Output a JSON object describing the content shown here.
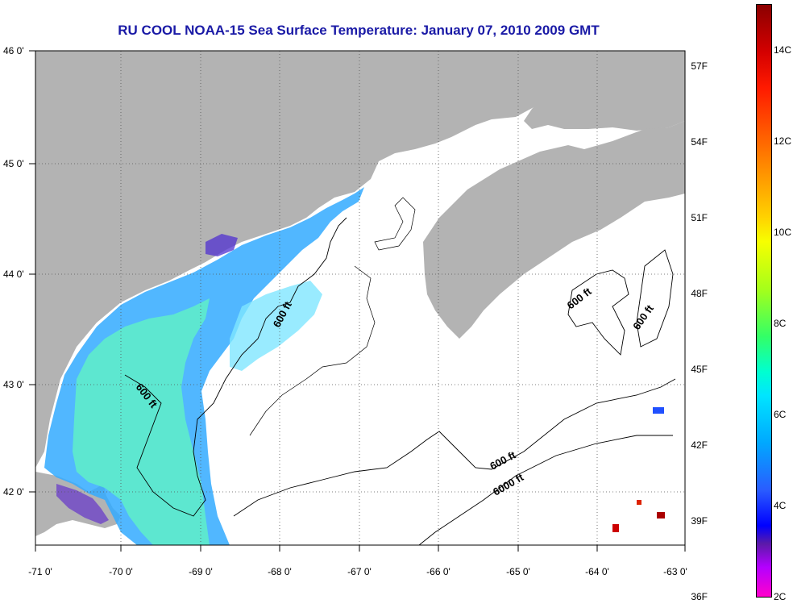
{
  "title": "RU COOL  NOAA-15  Sea Surface Temperature:  January 07, 2010 2009 GMT",
  "lat_labels": [
    "46 0'",
    "45 0'",
    "44 0'",
    "43 0'",
    "42 0'"
  ],
  "lon_labels": [
    "-71 0'",
    "-70 0'",
    "-69 0'",
    "-68 0'",
    "-67 0'",
    "-66 0'",
    "-65 0'",
    "-64 0'",
    "-63 0'"
  ],
  "contour_labels": [
    "600 ft",
    "600 ft",
    "600 ft",
    "600 ft",
    "6000 ft",
    "600 ft"
  ],
  "colorbar": {
    "f_labels": [
      "57F",
      "54F",
      "51F",
      "48F",
      "45F",
      "42F",
      "39F",
      "36F"
    ],
    "c_labels": [
      "14C",
      "12C",
      "10C",
      "8C",
      "6C",
      "4C",
      "2C"
    ]
  },
  "colors": {
    "land": "#b3b3b3",
    "title": "#1a1aa6",
    "cloud_free_ocean": "#ffffff"
  }
}
